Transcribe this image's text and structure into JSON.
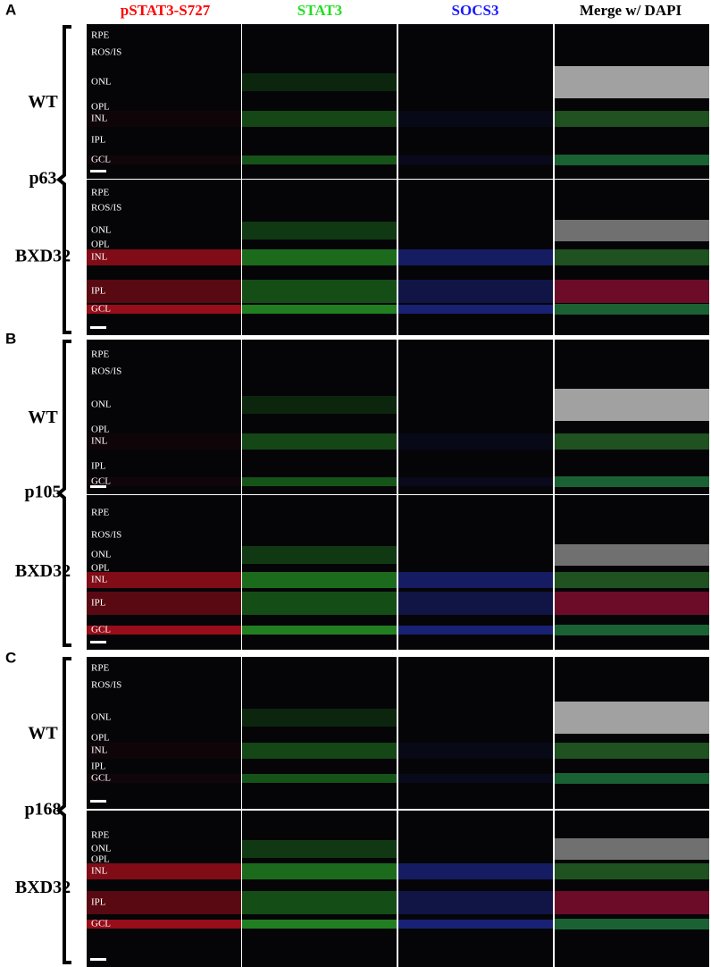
{
  "headers": [
    {
      "text": "pSTAT3-S727",
      "color": "#ff0000"
    },
    {
      "text": "STAT3",
      "color": "#22dd22"
    },
    {
      "text": "SOCS3",
      "color": "#1a1aff"
    },
    {
      "text": "Merge w/ DAPI",
      "color": "#000000"
    }
  ],
  "panels": [
    {
      "letter": "A",
      "age": "p63",
      "rows": [
        {
          "genotype": "WT",
          "layers": [
            "RPE",
            "ROS/IS",
            "ONL",
            "OPL",
            "INL",
            "IPL",
            "GCL"
          ]
        },
        {
          "genotype": "BXD32",
          "layers": [
            "RPE",
            "ROS/IS",
            "ONL",
            "OPL",
            "INL",
            "IPL",
            "GCL"
          ]
        }
      ]
    },
    {
      "letter": "B",
      "age": "p105",
      "rows": [
        {
          "genotype": "WT",
          "layers": [
            "RPE",
            "ROS/IS",
            "ONL",
            "OPL",
            "INL",
            "IPL",
            "GCL"
          ]
        },
        {
          "genotype": "BXD32",
          "layers": [
            "RPE",
            "ROS/IS",
            "ONL",
            "OPL",
            "INL",
            "IPL",
            "GCL"
          ]
        }
      ]
    },
    {
      "letter": "C",
      "age": "p168",
      "rows": [
        {
          "genotype": "WT",
          "layers": [
            "RPE",
            "ROS/IS",
            "ONL",
            "OPL",
            "INL",
            "IPL",
            "GCL"
          ]
        },
        {
          "genotype": "BXD32",
          "layers": [
            "RPE",
            "ONL",
            "OPL",
            "INL",
            "IPL",
            "GCL"
          ]
        }
      ]
    }
  ]
}
